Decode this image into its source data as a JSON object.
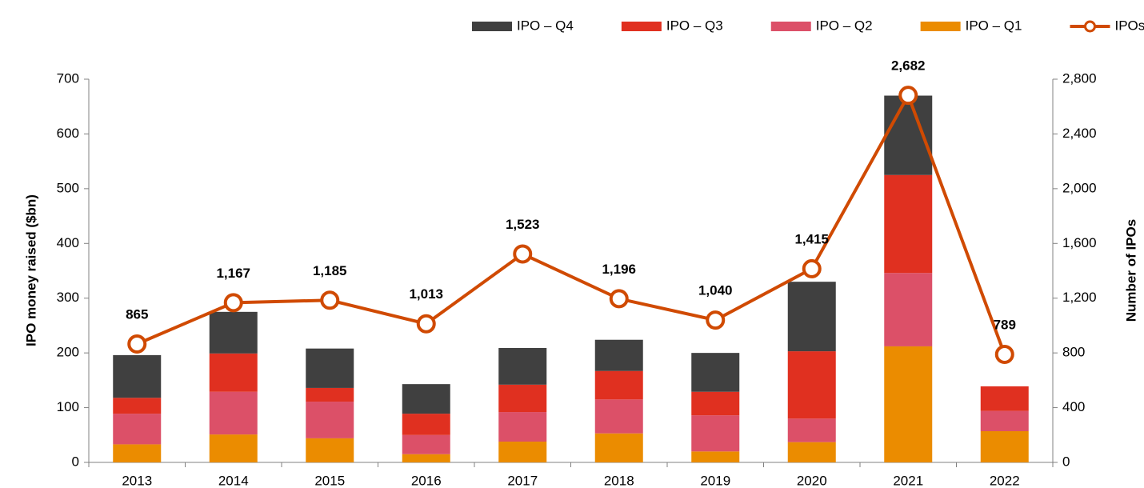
{
  "chart_data": {
    "type": "bar",
    "stacked": true,
    "categories": [
      "2013",
      "2014",
      "2015",
      "2016",
      "2017",
      "2018",
      "2019",
      "2020",
      "2021",
      "2022"
    ],
    "ylabel": "IPO money raised ($bn)",
    "y2label": "Number of IPOs",
    "ylim": [
      0,
      700
    ],
    "yticks": [
      0,
      100,
      200,
      300,
      400,
      500,
      600,
      700
    ],
    "y2lim": [
      0,
      2800
    ],
    "y2ticks": [
      0,
      400,
      800,
      {
        "value": 1200,
        "label": "1,200"
      },
      {
        "value": 1600,
        "label": "1,600"
      },
      {
        "value": 2000,
        "label": "2,000"
      },
      {
        "value": 2400,
        "label": "2,400"
      },
      {
        "value": 2800,
        "label": "2,800"
      }
    ],
    "grid": false,
    "legend": "top-right",
    "series": [
      {
        "name": "IPO – Q4",
        "color": "#404040",
        "values": [
          78,
          76,
          72,
          54,
          67,
          57,
          71,
          127,
          145,
          null
        ]
      },
      {
        "name": "IPO – Q3",
        "color": "#e03020",
        "values": [
          29,
          70,
          25,
          39,
          50,
          52,
          43,
          123,
          179,
          45
        ]
      },
      {
        "name": "IPO – Q2",
        "color": "#dc5068",
        "values": [
          56,
          78,
          67,
          35,
          54,
          62,
          66,
          43,
          134,
          37
        ]
      },
      {
        "name": "IPO – Q1",
        "color": "#eb8c00",
        "values": [
          33,
          51,
          44,
          15,
          38,
          53,
          20,
          37,
          212,
          57
        ]
      },
      {
        "name": "IPOs",
        "type": "line",
        "axis": "y2",
        "color": "#d04a02",
        "values": [
          865,
          1167,
          1185,
          1013,
          1523,
          1196,
          1040,
          1415,
          2682,
          789
        ],
        "value_labels": [
          "865",
          "1,167",
          "1,185",
          "1,013",
          "1,523",
          "1,196",
          "1,040",
          "1,415",
          "2,682",
          "789"
        ]
      }
    ]
  }
}
